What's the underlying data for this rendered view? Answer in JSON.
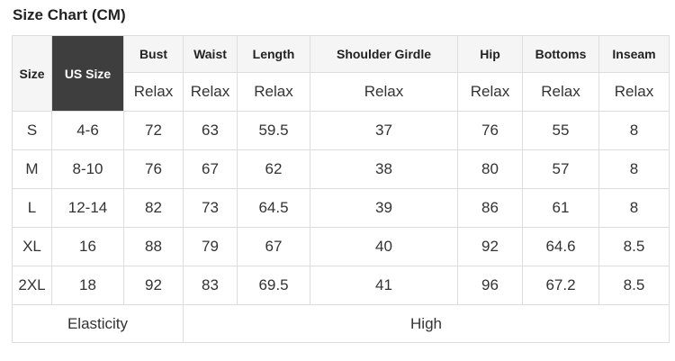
{
  "page": {
    "title": "Size Chart (CM)"
  },
  "table": {
    "fit_label": "Relax",
    "columns": [
      {
        "key": "size",
        "label": "Size"
      },
      {
        "key": "us_size",
        "label": "US Size"
      },
      {
        "key": "bust",
        "label": "Bust"
      },
      {
        "key": "waist",
        "label": "Waist"
      },
      {
        "key": "length",
        "label": "Length"
      },
      {
        "key": "shoulder_girdle",
        "label": "Shoulder Girdle"
      },
      {
        "key": "hip",
        "label": "Hip"
      },
      {
        "key": "bottoms",
        "label": "Bottoms"
      },
      {
        "key": "inseam",
        "label": "Inseam"
      }
    ],
    "rows": [
      {
        "size": "S",
        "us_size": "4-6",
        "bust": "72",
        "waist": "63",
        "length": "59.5",
        "shoulder_girdle": "37",
        "hip": "76",
        "bottoms": "55",
        "inseam": "8"
      },
      {
        "size": "M",
        "us_size": "8-10",
        "bust": "76",
        "waist": "67",
        "length": "62",
        "shoulder_girdle": "38",
        "hip": "80",
        "bottoms": "57",
        "inseam": "8"
      },
      {
        "size": "L",
        "us_size": "12-14",
        "bust": "82",
        "waist": "73",
        "length": "64.5",
        "shoulder_girdle": "39",
        "hip": "86",
        "bottoms": "61",
        "inseam": "8"
      },
      {
        "size": "XL",
        "us_size": "16",
        "bust": "88",
        "waist": "79",
        "length": "67",
        "shoulder_girdle": "40",
        "hip": "92",
        "bottoms": "64.6",
        "inseam": "8.5"
      },
      {
        "size": "2XL",
        "us_size": "18",
        "bust": "92",
        "waist": "83",
        "length": "69.5",
        "shoulder_girdle": "41",
        "hip": "96",
        "bottoms": "67.2",
        "inseam": "8.5"
      }
    ],
    "footer": {
      "label": "Elasticity",
      "value": "High"
    },
    "colors": {
      "text": "#333333",
      "title": "#222222",
      "border": "#dddddd",
      "header_bg": "#f5f5f5",
      "highlight_bg": "#3e3e3e",
      "highlight_text": "#ffffff",
      "page_bg": "#ffffff"
    }
  },
  "chart_data": {
    "type": "table",
    "title": "Size Chart (CM)",
    "units": "CM",
    "columns": [
      "Size",
      "US Size",
      "Bust",
      "Waist",
      "Length",
      "Shoulder Girdle",
      "Hip",
      "Bottoms",
      "Inseam"
    ],
    "fit_subheader": [
      "Relax",
      "Relax",
      "Relax",
      "Relax",
      "Relax",
      "Relax",
      "Relax"
    ],
    "rows": [
      [
        "S",
        "4-6",
        72,
        63,
        59.5,
        37,
        76,
        55,
        8
      ],
      [
        "M",
        "8-10",
        76,
        67,
        62,
        38,
        80,
        57,
        8
      ],
      [
        "L",
        "12-14",
        82,
        73,
        64.5,
        39,
        86,
        61,
        8
      ],
      [
        "XL",
        "16",
        88,
        79,
        67,
        40,
        92,
        64.6,
        8.5
      ],
      [
        "2XL",
        "18",
        92,
        83,
        69.5,
        41,
        96,
        67.2,
        8.5
      ]
    ],
    "footer": [
      "Elasticity",
      "High"
    ]
  }
}
